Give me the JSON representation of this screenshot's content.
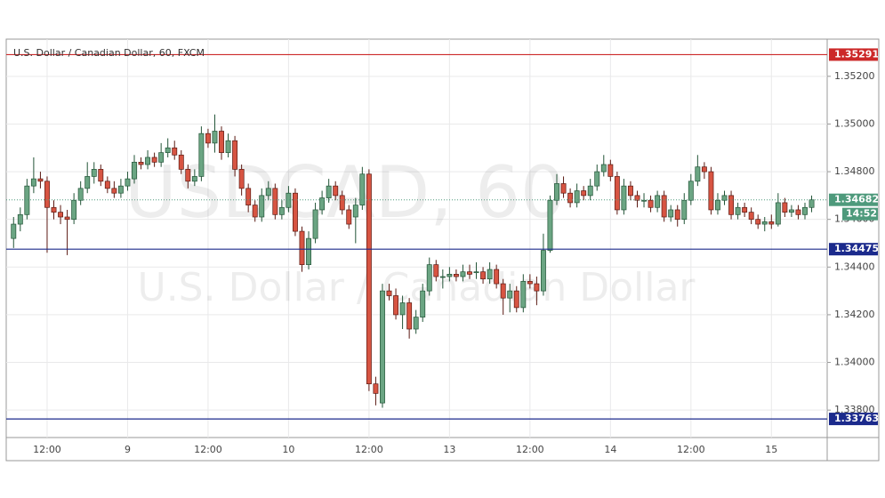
{
  "chart_data": {
    "type": "candlestick",
    "title": "U.S. Dollar / Canadian Dollar, 60, FXCM",
    "watermark": {
      "symbol": "USDCAD, 60",
      "description": "U.S. Dollar / Canadian Dollar"
    },
    "up_color": "#6ba583",
    "down_color": "#d75442",
    "categories": [
      null,
      null,
      null,
      null,
      null,
      "12:00",
      null,
      null,
      null,
      null,
      null,
      null,
      null,
      null,
      null,
      null,
      null,
      "9",
      null,
      null,
      null,
      null,
      null,
      null,
      null,
      null,
      null,
      null,
      null,
      "12:00",
      null,
      null,
      null,
      null,
      null,
      null,
      null,
      null,
      null,
      null,
      null,
      "10",
      null,
      null,
      null,
      null,
      null,
      null,
      null,
      null,
      null,
      null,
      null,
      "12:00",
      null,
      null,
      null,
      null,
      null,
      null,
      null,
      null,
      null,
      null,
      null,
      "13",
      null,
      null,
      null,
      null,
      null,
      null,
      null,
      null,
      null,
      null,
      null,
      "12:00",
      null,
      null,
      null,
      null,
      null,
      null,
      null,
      null,
      null,
      null,
      null,
      "14",
      null,
      null,
      null,
      null,
      null,
      null,
      null,
      null,
      null,
      null,
      null,
      "12:00",
      null,
      null,
      null,
      null,
      null,
      null,
      null,
      null,
      null,
      null,
      null,
      "15",
      null,
      null,
      null,
      null,
      null,
      null
    ],
    "open": [
      1.3452,
      1.3458,
      1.3462,
      1.3474,
      1.3477,
      1.3476,
      1.3465,
      1.3463,
      1.3461,
      1.346,
      1.3468,
      1.3473,
      1.3478,
      1.3481,
      1.3476,
      1.3473,
      1.3471,
      1.3474,
      1.3477,
      1.3484,
      1.3483,
      1.3486,
      1.3484,
      1.3488,
      1.349,
      1.3487,
      1.3481,
      1.3476,
      1.3478,
      1.3496,
      1.3492,
      1.3497,
      1.3488,
      1.3493,
      1.3481,
      1.3473,
      1.3466,
      1.3461,
      1.347,
      1.3473,
      1.3462,
      1.3465,
      1.3471,
      1.3455,
      1.3441,
      1.3452,
      1.3464,
      1.3469,
      1.3474,
      1.347,
      1.3464,
      1.3461,
      1.3466,
      1.3479,
      1.3391,
      1.3383,
      1.343,
      1.3428,
      1.342,
      1.3425,
      1.3414,
      1.3419,
      1.343,
      1.3441,
      1.3436,
      1.3436,
      1.3437,
      1.3436,
      1.3438,
      1.3438,
      1.3438,
      1.3435,
      1.3439,
      1.3433,
      1.3427,
      1.343,
      1.3423,
      1.3434,
      1.3433,
      1.343,
      1.3447,
      1.3468,
      1.3475,
      1.3471,
      1.3467,
      1.3472,
      1.347,
      1.3474,
      1.348,
      1.3483,
      1.3478,
      1.3464,
      1.3474,
      1.347,
      1.3468,
      1.3468,
      1.3465,
      1.347,
      1.3461,
      1.3464,
      1.346,
      1.3468,
      1.3476,
      1.3482,
      1.348,
      1.3464,
      1.3468,
      1.347,
      1.3462,
      1.3465,
      1.3463,
      1.346,
      1.3458,
      1.3459,
      1.3458,
      1.3467,
      1.3463,
      1.3464,
      1.3462,
      1.3465
    ],
    "high": [
      1.3461,
      1.3465,
      1.3477,
      1.3486,
      1.348,
      1.3478,
      1.3468,
      1.3466,
      1.3464,
      1.3471,
      1.3476,
      1.3484,
      1.3484,
      1.3483,
      1.3478,
      1.3476,
      1.3477,
      1.348,
      1.3487,
      1.3486,
      1.3489,
      1.3488,
      1.3492,
      1.3494,
      1.3493,
      1.3489,
      1.3483,
      1.3481,
      1.3499,
      1.3498,
      1.3504,
      1.3499,
      1.3496,
      1.3495,
      1.3483,
      1.3475,
      1.3468,
      1.3473,
      1.3476,
      1.3475,
      1.3468,
      1.3474,
      1.3473,
      1.3457,
      1.3455,
      1.3467,
      1.3472,
      1.3477,
      1.3476,
      1.3472,
      1.3466,
      1.3469,
      1.3482,
      1.3481,
      1.3394,
      1.3433,
      1.3433,
      1.3431,
      1.3428,
      1.3427,
      1.3422,
      1.3433,
      1.3444,
      1.3443,
      1.3439,
      1.344,
      1.3439,
      1.3441,
      1.3441,
      1.3442,
      1.344,
      1.3442,
      1.3441,
      1.3435,
      1.3433,
      1.3432,
      1.3437,
      1.3437,
      1.3436,
      1.3454,
      1.347,
      1.3479,
      1.3478,
      1.3473,
      1.3475,
      1.3474,
      1.3477,
      1.3483,
      1.3487,
      1.3485,
      1.348,
      1.3477,
      1.3476,
      1.3472,
      1.3471,
      1.347,
      1.3472,
      1.3472,
      1.3466,
      1.3466,
      1.3471,
      1.3479,
      1.3487,
      1.3484,
      1.3482,
      1.3471,
      1.3472,
      1.3472,
      1.3467,
      1.3467,
      1.3465,
      1.3462,
      1.3461,
      1.3462,
      1.3471,
      1.3469,
      1.3466,
      1.3466,
      1.3467,
      1.347
    ],
    "low": [
      1.3448,
      1.3455,
      1.346,
      1.3471,
      1.3473,
      1.3446,
      1.346,
      1.3458,
      1.3445,
      1.3458,
      1.3466,
      1.3471,
      1.3475,
      1.3474,
      1.3471,
      1.3469,
      1.3469,
      1.3472,
      1.3475,
      1.3481,
      1.3481,
      1.3482,
      1.3482,
      1.3486,
      1.3485,
      1.3479,
      1.3473,
      1.3474,
      1.3476,
      1.349,
      1.3488,
      1.3485,
      1.3486,
      1.3478,
      1.347,
      1.3463,
      1.3459,
      1.3459,
      1.3468,
      1.346,
      1.346,
      1.3463,
      1.3453,
      1.3438,
      1.3439,
      1.345,
      1.3462,
      1.3467,
      1.3468,
      1.3462,
      1.3456,
      1.345,
      1.3464,
      1.3388,
      1.3382,
      1.3381,
      1.3426,
      1.3418,
      1.3414,
      1.341,
      1.3412,
      1.3417,
      1.3428,
      1.3434,
      1.3431,
      1.3434,
      1.3434,
      1.3434,
      1.3435,
      1.3435,
      1.3433,
      1.3433,
      1.3431,
      1.342,
      1.3421,
      1.3421,
      1.3421,
      1.3431,
      1.3424,
      1.3428,
      1.3446,
      1.3466,
      1.3469,
      1.3465,
      1.3465,
      1.3468,
      1.3468,
      1.3472,
      1.3478,
      1.3476,
      1.3462,
      1.3462,
      1.3468,
      1.3465,
      1.3465,
      1.3463,
      1.3463,
      1.3459,
      1.3459,
      1.3457,
      1.3458,
      1.3466,
      1.3474,
      1.3477,
      1.3462,
      1.3462,
      1.3466,
      1.346,
      1.346,
      1.3461,
      1.3458,
      1.3456,
      1.3455,
      1.3456,
      1.3457,
      1.3461,
      1.3461,
      1.346,
      1.346,
      1.3463
    ],
    "close": [
      1.3458,
      1.3462,
      1.3474,
      1.3477,
      1.3476,
      1.3465,
      1.3463,
      1.3461,
      1.346,
      1.3468,
      1.3473,
      1.3478,
      1.3481,
      1.3476,
      1.3473,
      1.3471,
      1.3474,
      1.3477,
      1.3484,
      1.3483,
      1.3486,
      1.3484,
      1.3488,
      1.349,
      1.3487,
      1.3481,
      1.3476,
      1.3478,
      1.3496,
      1.3492,
      1.3497,
      1.3488,
      1.3493,
      1.3481,
      1.3473,
      1.3466,
      1.3461,
      1.347,
      1.3473,
      1.3462,
      1.3465,
      1.3471,
      1.3455,
      1.3441,
      1.3452,
      1.3464,
      1.3469,
      1.3474,
      1.347,
      1.3464,
      1.3458,
      1.3466,
      1.3479,
      1.3391,
      1.3387,
      1.343,
      1.3428,
      1.342,
      1.3425,
      1.3414,
      1.3419,
      1.343,
      1.3441,
      1.3436,
      1.3436,
      1.3437,
      1.3436,
      1.3438,
      1.3437,
      1.3438,
      1.3435,
      1.3439,
      1.3433,
      1.3427,
      1.343,
      1.3423,
      1.3434,
      1.3433,
      1.343,
      1.3447,
      1.3468,
      1.3475,
      1.3471,
      1.3467,
      1.3472,
      1.347,
      1.3474,
      1.348,
      1.3483,
      1.3478,
      1.3464,
      1.3474,
      1.347,
      1.3468,
      1.3468,
      1.3465,
      1.347,
      1.3461,
      1.3464,
      1.346,
      1.3468,
      1.3476,
      1.3482,
      1.348,
      1.3464,
      1.3468,
      1.347,
      1.3462,
      1.3465,
      1.3463,
      1.346,
      1.3458,
      1.3459,
      1.3458,
      1.3467,
      1.3463,
      1.3464,
      1.3462,
      1.3465,
      1.34682
    ],
    "ylim": [
      1.33685,
      1.35356
    ],
    "yticks": [
      {
        "value": 1.338,
        "label": "1.33800"
      },
      {
        "value": 1.34,
        "label": "1.34000"
      },
      {
        "value": 1.342,
        "label": "1.34200"
      },
      {
        "value": 1.344,
        "label": "1.34400"
      },
      {
        "value": 1.346,
        "label": "1.34600"
      },
      {
        "value": 1.348,
        "label": "1.34800"
      },
      {
        "value": 1.35,
        "label": "1.35000"
      },
      {
        "value": 1.352,
        "label": "1.35200"
      }
    ],
    "grid": true,
    "levels": [
      {
        "value": 1.35291,
        "label": "1.35291",
        "color": "#cc2929"
      },
      {
        "value": 1.34475,
        "label": "1.34475",
        "color": "#1b2a8c"
      },
      {
        "value": 1.33763,
        "label": "1.33763",
        "color": "#1b2a8c"
      }
    ],
    "last_price": {
      "value": 1.34682,
      "label": "1.34682",
      "color": "#4e9a7c"
    },
    "countdown": "14:52"
  }
}
